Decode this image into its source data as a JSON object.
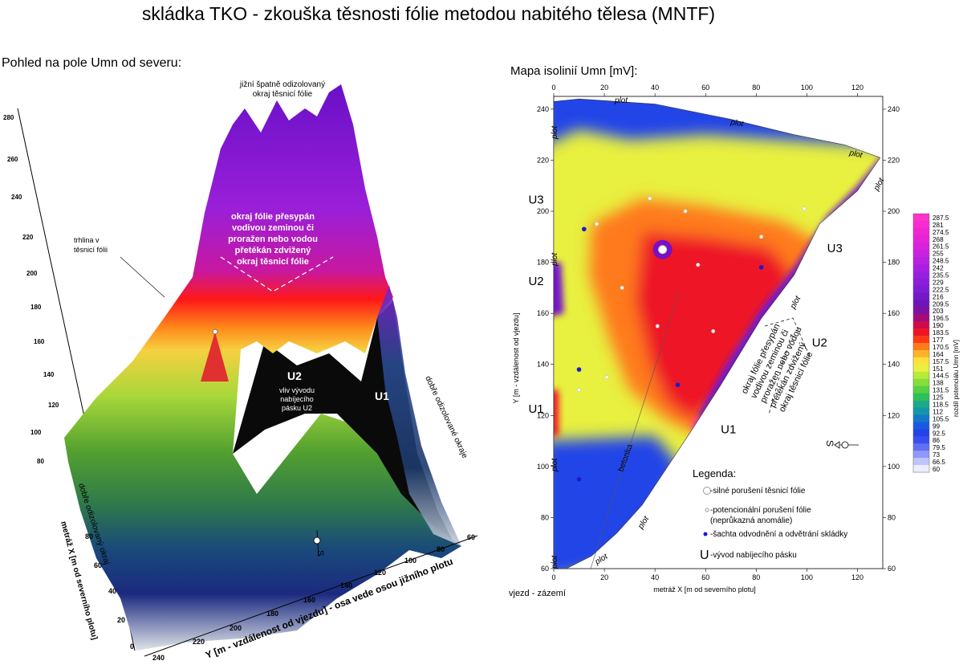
{
  "title": "skládka TKO - zkouška těsnosti fólie metodou nabitého tělesa (MNTF)",
  "left_panel": {
    "title": "Pohled na pole Umn od severu:",
    "annotations": {
      "top_note_line1": "jižní špatně odizolovaný",
      "top_note_line2": "okraj těsnicí fólie",
      "crack_line1": "trhlina v",
      "crack_line2": "těsnicí fólii",
      "edge_note": [
        "okraj fólie přesypán",
        "vodivou zeminou či",
        "proražen nebo vodou",
        "přetékán zdvižený",
        "okraj těsnicí fólie"
      ],
      "u2_label": "U2",
      "u2_note": [
        "vliv vývodu",
        "nabíjecího",
        "pásku U2"
      ],
      "u1_label": "U1",
      "right_edge": "dobře odizolované okraje",
      "left_edge": "dobře odizolovaný okraj",
      "south": "S"
    },
    "z_ticks": [
      "280",
      "260",
      "240",
      "220",
      "200",
      "180",
      "160",
      "140",
      "120",
      "100",
      "80"
    ],
    "x_axis_label": "metráž X [m od severního plotu]",
    "x_ticks": [
      "0",
      "20",
      "40",
      "60",
      "80"
    ],
    "y_axis_label": "Y [m - vzdálenost od vjezdu] - osa vede osou jižního plotu",
    "y_ticks": [
      "240",
      "220",
      "200",
      "180",
      "160",
      "140",
      "120",
      "100",
      "80",
      "60"
    ]
  },
  "right_panel": {
    "title": "Mapa isolinií Umn  [mV]:",
    "chart_data": {
      "type": "heatmap",
      "xlabel": "metráž X [m od severního plotu]",
      "ylabel": "Y [m - vzdálenost od vjezdu]",
      "xlim": [
        0,
        130
      ],
      "ylim": [
        60,
        245
      ],
      "x_ticks": [
        0,
        20,
        40,
        60,
        80,
        100,
        120
      ],
      "y_ticks": [
        60,
        80,
        100,
        120,
        140,
        160,
        180,
        200,
        220,
        240
      ],
      "x_tick_labels": [
        "0",
        "20",
        "40",
        "60",
        "80",
        "100",
        "120"
      ],
      "y_tick_labels": [
        "60",
        "80",
        "100",
        "120",
        "140",
        "160",
        "180",
        "200",
        "220",
        "240"
      ],
      "colorbar_label": "rozdíl potenciálu Umn [mV]",
      "colorbar_levels": [
        "287.5",
        "281",
        "274.5",
        "268",
        "261.5",
        "255",
        "248.5",
        "242",
        "235.5",
        "229",
        "222.5",
        "216",
        "209.5",
        "203",
        "196.5",
        "190",
        "183.5",
        "177",
        "170.5",
        "164",
        "157.5",
        "151",
        "144.5",
        "138",
        "131.5",
        "125",
        "118.5",
        "112",
        "105.5",
        "99",
        "92.5",
        "86",
        "79.5",
        "73",
        "66.5",
        "60"
      ],
      "colorbar_colors": [
        "#ff33cc",
        "#f92ccf",
        "#f026d2",
        "#e524d6",
        "#d822dc",
        "#c921e0",
        "#b920e2",
        "#a91fe2",
        "#9a1ee0",
        "#8b1ddb",
        "#7e1dd4",
        "#7419c8",
        "#6c15b8",
        "#8010a0",
        "#a40a78",
        "#cf0a4a",
        "#ee1426",
        "#ff3a14",
        "#ff7a1a",
        "#ffb22a",
        "#ffe13a",
        "#e8f040",
        "#b8ea3a",
        "#86de3a",
        "#55d040",
        "#2fbf5a",
        "#1caa86",
        "#1496aa",
        "#1478c8",
        "#1a5ae0",
        "#2244e8",
        "#3a4ef0",
        "#6070f4",
        "#9098f8",
        "#c0c4fc",
        "#ecedfe"
      ],
      "regions": [
        {
          "id": "north-blue",
          "value": 92
        },
        {
          "id": "green-band",
          "value": 150
        },
        {
          "id": "yellow-centre",
          "value": 168
        },
        {
          "id": "red-core",
          "value": 184
        },
        {
          "id": "purple-edge",
          "value": 215
        },
        {
          "id": "southwest-blue",
          "value": 95
        }
      ],
      "anomalies": [
        {
          "type": "strong",
          "x": 43,
          "y": 185,
          "value": 287.5
        },
        {
          "type": "potential",
          "x": 38,
          "y": 205
        },
        {
          "type": "potential",
          "x": 52,
          "y": 200
        },
        {
          "type": "potential",
          "x": 82,
          "y": 190
        },
        {
          "type": "potential",
          "x": 99,
          "y": 201
        },
        {
          "type": "potential",
          "x": 57,
          "y": 179
        },
        {
          "type": "potential",
          "x": 27,
          "y": 170
        },
        {
          "type": "potential",
          "x": 41,
          "y": 155
        },
        {
          "type": "potential",
          "x": 63,
          "y": 153
        },
        {
          "type": "potential",
          "x": 21,
          "y": 135
        },
        {
          "type": "potential",
          "x": 10,
          "y": 130
        },
        {
          "type": "potential",
          "x": 17,
          "y": 195
        },
        {
          "type": "shaft",
          "x": 12,
          "y": 193
        },
        {
          "type": "shaft",
          "x": 82,
          "y": 178
        },
        {
          "type": "shaft",
          "x": 10,
          "y": 138
        },
        {
          "type": "shaft",
          "x": 49,
          "y": 132
        },
        {
          "type": "shaft",
          "x": 10,
          "y": 95
        }
      ],
      "electrodes": [
        {
          "label": "U3",
          "x": -10,
          "y": 203
        },
        {
          "label": "U2",
          "x": -10,
          "y": 171
        },
        {
          "label": "U1",
          "x": -10,
          "y": 121
        },
        {
          "label": "U3",
          "x": 108,
          "y": 184
        },
        {
          "label": "U2",
          "x": 102,
          "y": 147
        },
        {
          "label": "U1",
          "x": 66,
          "y": 113
        }
      ],
      "labels": {
        "plot": "plot",
        "betonka": "betonka",
        "vjezd": "vjezd - zázemí",
        "south": "S",
        "edge_note": [
          "okraj fólie přesypán",
          "vodivou zeminou či",
          "proražen nebo vodou",
          "přetékán zdvižený",
          "okraj těsnicí fólie"
        ]
      },
      "legend": {
        "title": "Legenda:",
        "items": [
          {
            "symbol": "strong",
            "text": "-silné porušení těsnicí fólie"
          },
          {
            "symbol": "potential",
            "text": "-potencionální porušení fólie"
          },
          {
            "symbol": "none",
            "text": "(neprůkazná anomálie)"
          },
          {
            "symbol": "shaft",
            "text": "-šachta odvodnění a odvětrání skládky"
          },
          {
            "symbol": "U",
            "text": "-vývod nabíjecího pásku"
          }
        ]
      }
    }
  }
}
